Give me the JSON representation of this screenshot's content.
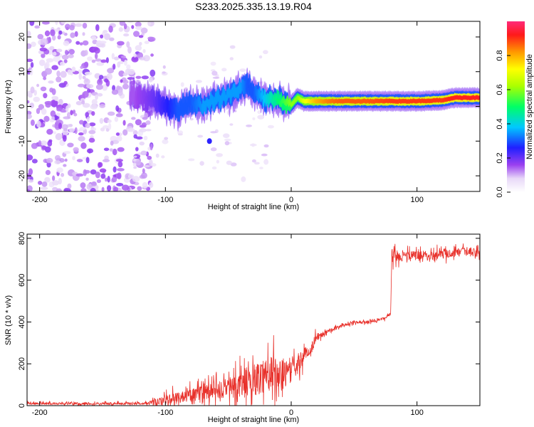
{
  "title": "S233.2025.335.13.19.R04",
  "chart_data": [
    {
      "type": "heatmap",
      "panel": "spectrogram",
      "xlabel": "Height of straight line (km)",
      "ylabel": "Frequency (Hz)",
      "xlim": [
        -210,
        150
      ],
      "ylim": [
        -24.5,
        24.5
      ],
      "xticks": [
        -200,
        -100,
        0,
        100
      ],
      "yticks": [
        -20,
        -10,
        0,
        10,
        20
      ],
      "colorbar": {
        "label": "Normalized spectral amplitude",
        "range": [
          0,
          1
        ],
        "ticks": [
          "0.0",
          "0.2",
          "0.4",
          "0.6",
          "0.8"
        ]
      },
      "ridge": {
        "x": [
          -125,
          -110,
          -100,
          -90,
          -80,
          -70,
          -60,
          -50,
          -40,
          -35,
          -30,
          -25,
          -20,
          -15,
          -10,
          -5,
          0,
          5,
          10,
          20,
          30,
          40,
          60,
          80,
          100,
          120,
          130,
          140,
          150
        ],
        "freq": [
          3,
          2,
          0,
          -1,
          1,
          0,
          2,
          3,
          5,
          6,
          4,
          3,
          2,
          2,
          2,
          1,
          0.5,
          2.5,
          1.5,
          1.5,
          1.5,
          1.5,
          1.5,
          1.5,
          1.5,
          1.8,
          2.5,
          2.5,
          2.5
        ],
        "amp": [
          0.15,
          0.2,
          0.25,
          0.3,
          0.3,
          0.35,
          0.35,
          0.35,
          0.35,
          0.3,
          0.3,
          0.35,
          0.4,
          0.45,
          0.5,
          0.55,
          0.6,
          0.6,
          0.7,
          0.8,
          0.85,
          0.9,
          0.9,
          0.95,
          0.95,
          0.95,
          1.0,
          1.0,
          1.0
        ]
      },
      "noise_region": [
        -210,
        -120
      ],
      "side_features": [
        {
          "x": -65,
          "freq": -10,
          "amp": 0.25
        },
        {
          "x": -20,
          "freq": -16,
          "amp": 0.05
        },
        {
          "x": -38,
          "freq": -21,
          "amp": 0.05
        }
      ]
    },
    {
      "type": "line",
      "panel": "snr",
      "xlabel": "Height of straight line (km)",
      "ylabel": "SNR (10 * v/v)",
      "xlim": [
        -210,
        150
      ],
      "ylim": [
        0,
        820
      ],
      "xticks": [
        -200,
        -100,
        0,
        100
      ],
      "yticks": [
        0,
        200,
        400,
        600,
        800
      ],
      "color": "#e8302a",
      "series": [
        {
          "name": "SNR",
          "x": [
            -210,
            -190,
            -170,
            -150,
            -130,
            -115,
            -105,
            -100,
            -90,
            -80,
            -70,
            -60,
            -50,
            -40,
            -30,
            -20,
            -15,
            -10,
            -5,
            0,
            5,
            10,
            15,
            20,
            30,
            40,
            50,
            60,
            70,
            75,
            79,
            80,
            82,
            85,
            90,
            100,
            110,
            120,
            130,
            140,
            150
          ],
          "y": [
            10,
            10,
            10,
            10,
            10,
            12,
            18,
            30,
            40,
            50,
            60,
            70,
            85,
            100,
            120,
            150,
            160,
            140,
            160,
            170,
            200,
            240,
            260,
            330,
            360,
            380,
            400,
            400,
            410,
            420,
            440,
            700,
            720,
            715,
            715,
            720,
            720,
            725,
            730,
            735,
            730
          ],
          "noise": [
            8,
            8,
            8,
            8,
            8,
            10,
            25,
            35,
            40,
            45,
            55,
            60,
            70,
            90,
            110,
            120,
            120,
            110,
            100,
            90,
            70,
            50,
            40,
            30,
            15,
            10,
            10,
            10,
            10,
            10,
            10,
            40,
            40,
            35,
            35,
            30,
            30,
            30,
            30,
            30,
            30
          ]
        }
      ]
    }
  ]
}
